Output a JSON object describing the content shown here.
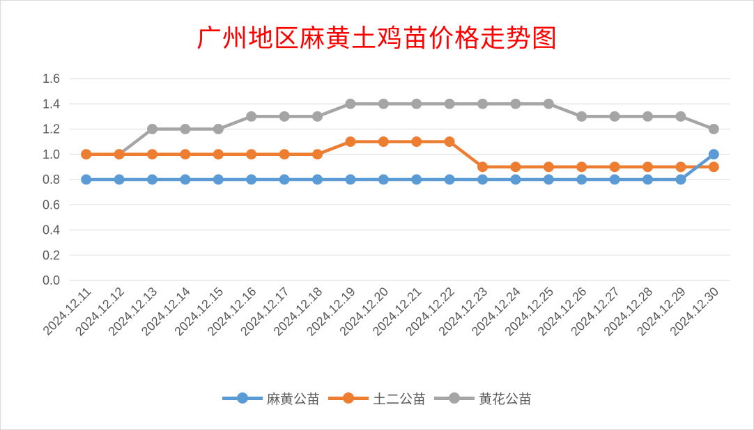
{
  "chart_data": {
    "type": "line",
    "title": "广州地区麻黄土鸡苗价格走势图",
    "categories": [
      "2024.12.11",
      "2024.12.12",
      "2024.12.13",
      "2024.12.14",
      "2024.12.15",
      "2024.12.16",
      "2024.12.17",
      "2024.12.18",
      "2024.12.19",
      "2024.12.20",
      "2024.12.21",
      "2024.12.22",
      "2024.12.23",
      "2024.12.24",
      "2024.12.25",
      "2024.12.26",
      "2024.12.27",
      "2024.12.28",
      "2024.12.29",
      "2024.12.30"
    ],
    "series": [
      {
        "name": "麻黄公苗",
        "color": "#5b9bd5",
        "values": [
          0.8,
          0.8,
          0.8,
          0.8,
          0.8,
          0.8,
          0.8,
          0.8,
          0.8,
          0.8,
          0.8,
          0.8,
          0.8,
          0.8,
          0.8,
          0.8,
          0.8,
          0.8,
          0.8,
          1.0
        ]
      },
      {
        "name": "土二公苗",
        "color": "#ed7d31",
        "values": [
          1.0,
          1.0,
          1.0,
          1.0,
          1.0,
          1.0,
          1.0,
          1.0,
          1.1,
          1.1,
          1.1,
          1.1,
          0.9,
          0.9,
          0.9,
          0.9,
          0.9,
          0.9,
          0.9,
          0.9
        ]
      },
      {
        "name": "黄花公苗",
        "color": "#a5a5a5",
        "values": [
          1.0,
          1.0,
          1.2,
          1.2,
          1.2,
          1.3,
          1.3,
          1.3,
          1.4,
          1.4,
          1.4,
          1.4,
          1.4,
          1.4,
          1.4,
          1.3,
          1.3,
          1.3,
          1.3,
          1.2
        ]
      }
    ],
    "ylim": [
      0,
      1.6
    ],
    "yticks": [
      "0.0",
      "0.2",
      "0.4",
      "0.6",
      "0.8",
      "1.0",
      "1.2",
      "1.4",
      "1.6"
    ],
    "grid": true,
    "legend": "bottom"
  }
}
